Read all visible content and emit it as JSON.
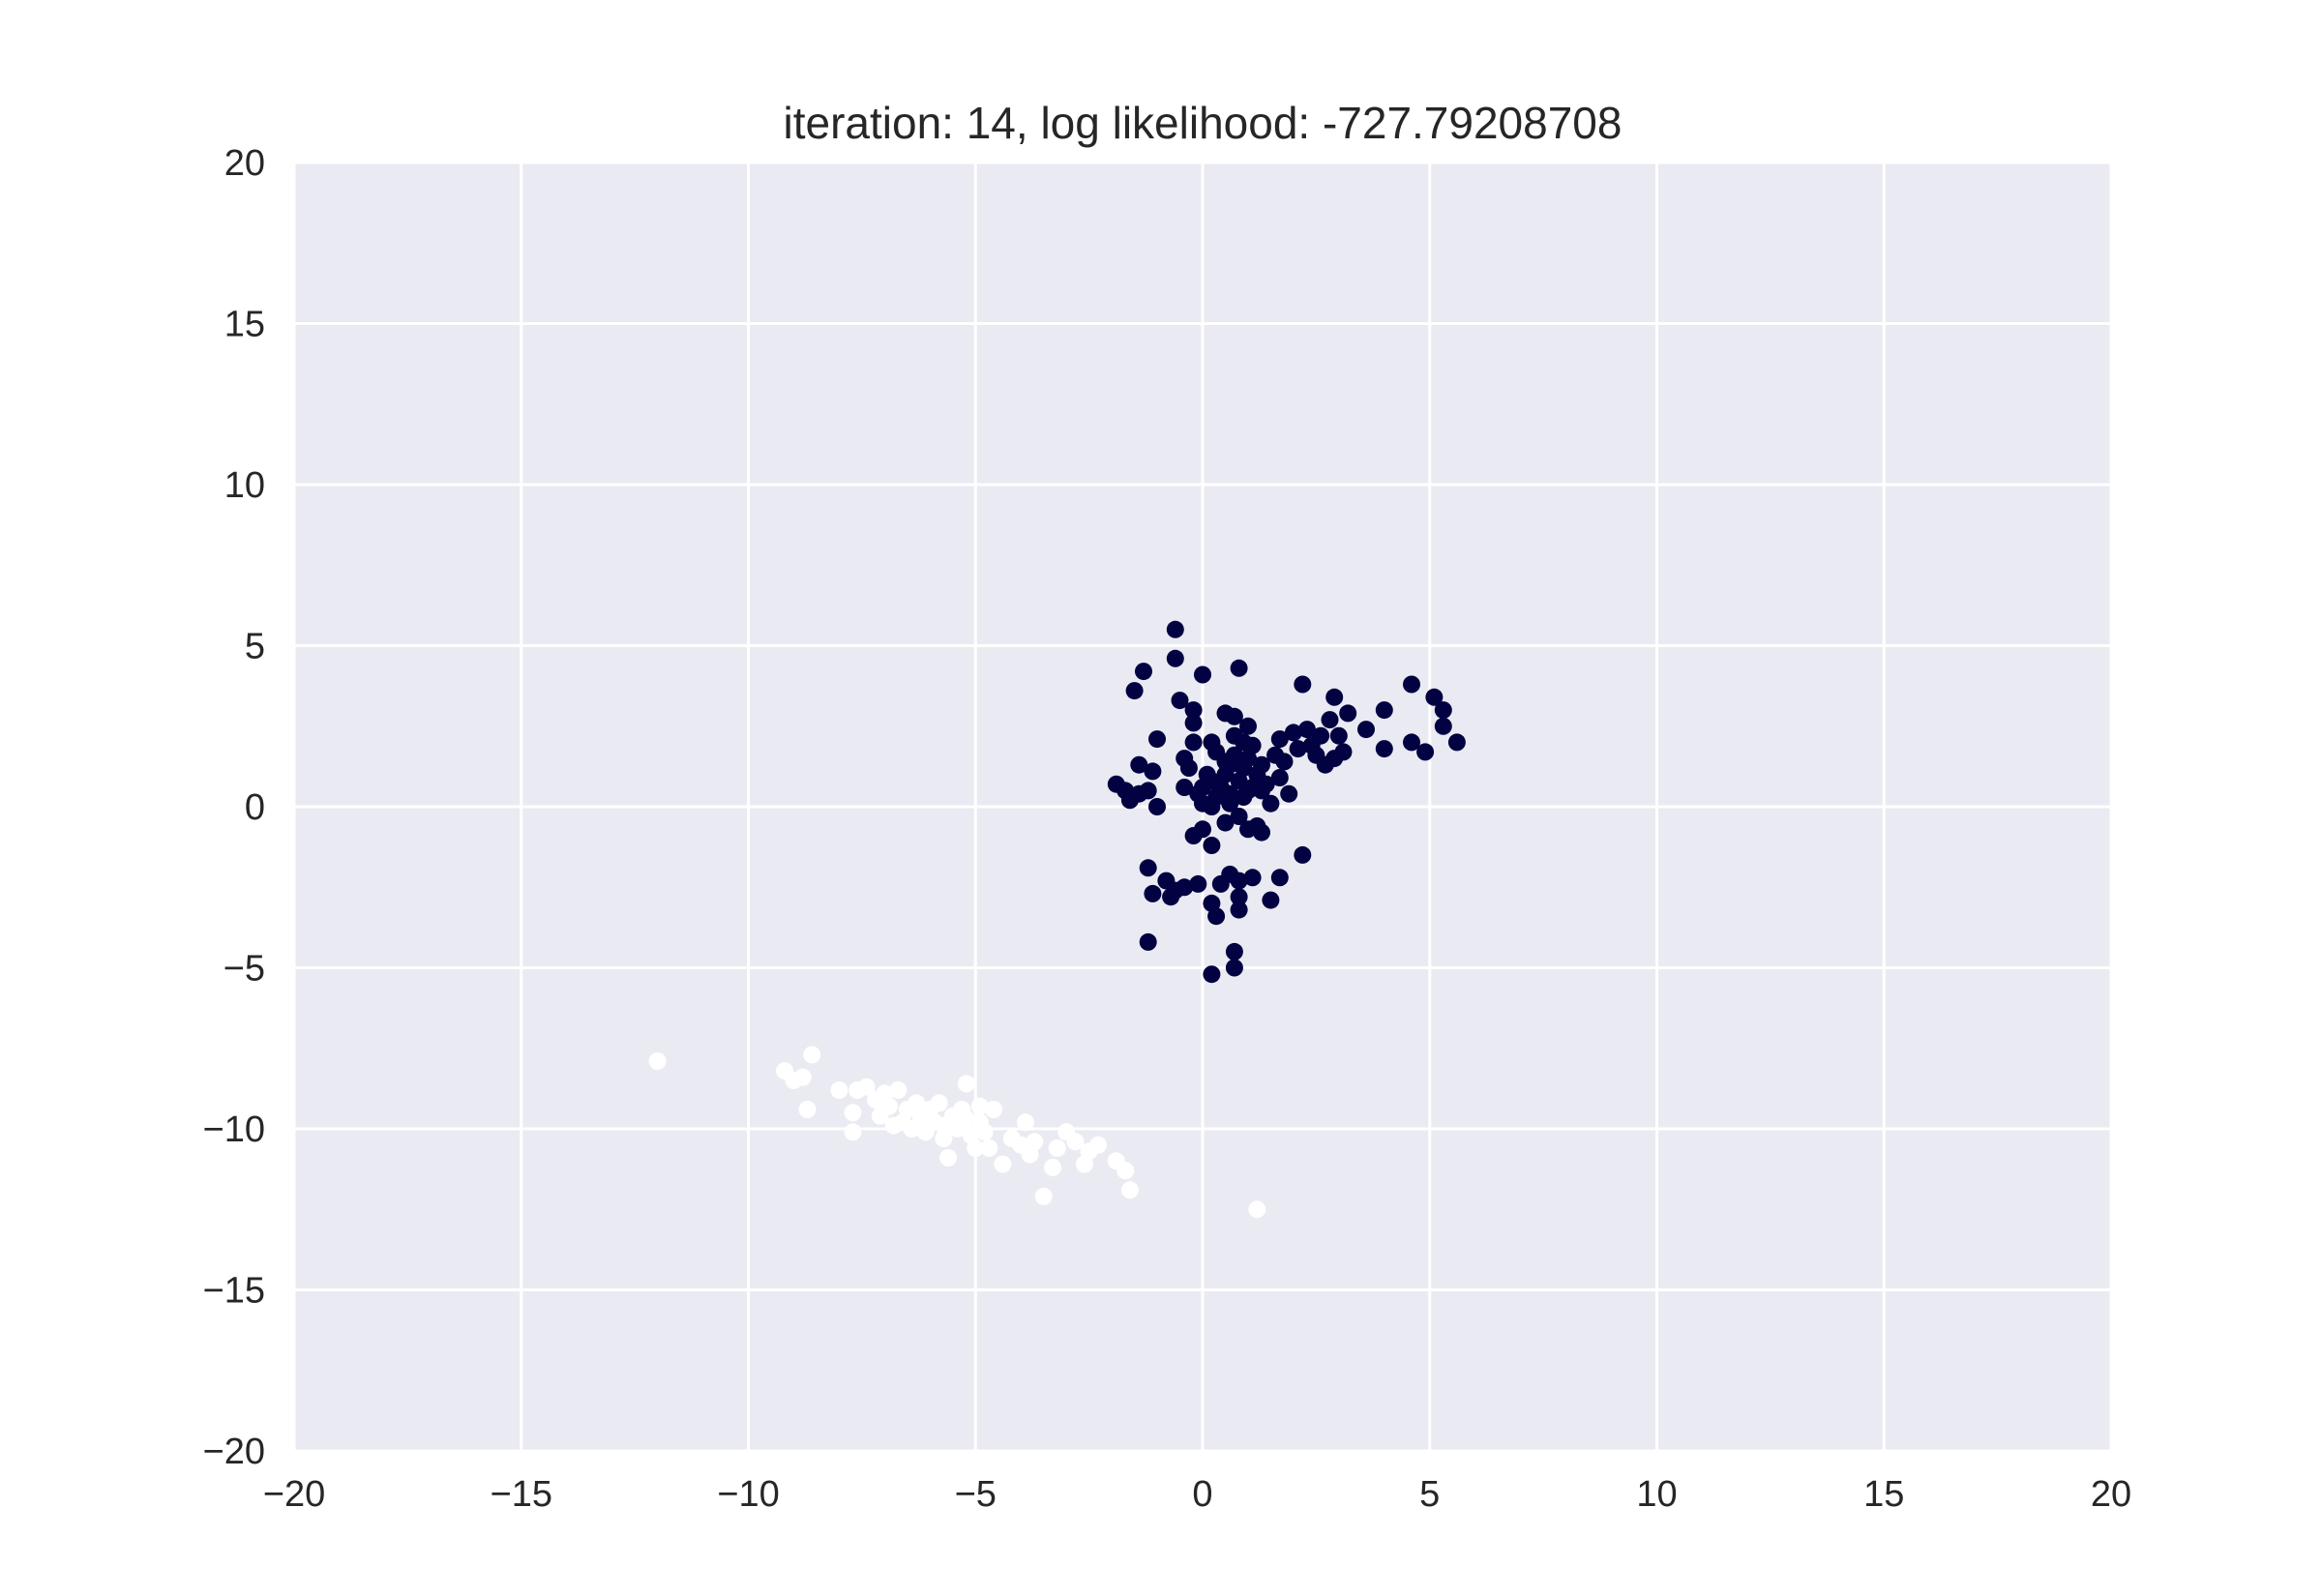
{
  "chart_data": {
    "type": "scatter",
    "title": "iteration: 14, log likelihood: -727.79208708",
    "xlabel": "",
    "ylabel": "",
    "xlim": [
      -20,
      20
    ],
    "ylim": [
      -20,
      20
    ],
    "xticks": [
      -20,
      -15,
      -10,
      -5,
      0,
      5,
      10,
      15,
      20
    ],
    "yticks": [
      -20,
      -15,
      -10,
      -5,
      0,
      5,
      10,
      15,
      20
    ],
    "xtick_labels": [
      "−20",
      "−15",
      "−10",
      "−5",
      "0",
      "5",
      "10",
      "15",
      "20"
    ],
    "ytick_labels": [
      "−20",
      "−15",
      "−10",
      "−5",
      "0",
      "5",
      "10",
      "15",
      "20"
    ],
    "grid": true,
    "background_color": "#eaeaf2",
    "grid_color": "#ffffff",
    "series": [
      {
        "color": "#020142",
        "points": [
          [
            -0.6,
            5.5
          ],
          [
            -1.3,
            4.2
          ],
          [
            -0.6,
            4.6
          ],
          [
            0.0,
            4.1
          ],
          [
            0.8,
            4.3
          ],
          [
            -1.5,
            3.6
          ],
          [
            -0.5,
            3.3
          ],
          [
            -0.2,
            3.0
          ],
          [
            -0.2,
            2.6
          ],
          [
            0.5,
            2.9
          ],
          [
            0.7,
            2.8
          ],
          [
            1.0,
            2.5
          ],
          [
            -0.2,
            2.0
          ],
          [
            -1.0,
            2.1
          ],
          [
            0.2,
            2.0
          ],
          [
            -0.4,
            1.5
          ],
          [
            -0.3,
            1.2
          ],
          [
            -1.1,
            1.1
          ],
          [
            -1.4,
            1.3
          ],
          [
            -1.4,
            0.4
          ],
          [
            -1.2,
            0.5
          ],
          [
            -1.9,
            0.7
          ],
          [
            -1.7,
            0.5
          ],
          [
            -1.6,
            0.2
          ],
          [
            -1.0,
            0.0
          ],
          [
            -0.4,
            0.6
          ],
          [
            -0.1,
            0.4
          ],
          [
            0.0,
            0.1
          ],
          [
            0.1,
            1.0
          ],
          [
            0.2,
            0.8
          ],
          [
            0.3,
            0.3
          ],
          [
            0.4,
            0.6
          ],
          [
            0.5,
            1.0
          ],
          [
            0.6,
            1.3
          ],
          [
            0.7,
            1.6
          ],
          [
            0.7,
            2.2
          ],
          [
            0.8,
            0.8
          ],
          [
            0.9,
            1.2
          ],
          [
            0.9,
            2.0
          ],
          [
            1.0,
            0.5
          ],
          [
            1.0,
            1.5
          ],
          [
            1.1,
            1.9
          ],
          [
            1.2,
            1.0
          ],
          [
            1.3,
            1.3
          ],
          [
            1.4,
            0.7
          ],
          [
            1.5,
            0.1
          ],
          [
            1.6,
            1.6
          ],
          [
            1.7,
            2.1
          ],
          [
            1.7,
            0.9
          ],
          [
            1.8,
            1.4
          ],
          [
            2.0,
            2.3
          ],
          [
            2.1,
            1.8
          ],
          [
            2.2,
            3.8
          ],
          [
            2.3,
            2.4
          ],
          [
            2.4,
            1.9
          ],
          [
            2.5,
            1.6
          ],
          [
            2.6,
            2.2
          ],
          [
            2.7,
            1.3
          ],
          [
            2.8,
            2.7
          ],
          [
            2.9,
            1.5
          ],
          [
            2.9,
            3.4
          ],
          [
            3.0,
            2.2
          ],
          [
            3.1,
            1.7
          ],
          [
            3.2,
            2.9
          ],
          [
            3.6,
            2.4
          ],
          [
            4.0,
            3.0
          ],
          [
            4.0,
            1.8
          ],
          [
            4.6,
            3.8
          ],
          [
            4.6,
            2.0
          ],
          [
            4.9,
            1.7
          ],
          [
            5.1,
            3.4
          ],
          [
            5.3,
            3.0
          ],
          [
            5.3,
            2.5
          ],
          [
            5.6,
            2.0
          ],
          [
            0.3,
            1.7
          ],
          [
            0.5,
            1.4
          ],
          [
            0.6,
            0.4
          ],
          [
            0.8,
            -0.3
          ],
          [
            0.5,
            -0.5
          ],
          [
            1.0,
            -0.7
          ],
          [
            1.2,
            -0.6
          ],
          [
            1.3,
            -0.8
          ],
          [
            0.0,
            -0.7
          ],
          [
            -0.2,
            -0.9
          ],
          [
            0.2,
            -1.2
          ],
          [
            -1.2,
            -1.9
          ],
          [
            -0.8,
            -2.3
          ],
          [
            -0.6,
            -2.6
          ],
          [
            -0.4,
            -2.5
          ],
          [
            -0.1,
            -2.4
          ],
          [
            0.4,
            -2.4
          ],
          [
            0.6,
            -2.1
          ],
          [
            0.8,
            -2.3
          ],
          [
            1.1,
            -2.2
          ],
          [
            1.7,
            -2.2
          ],
          [
            2.2,
            -1.5
          ],
          [
            -1.1,
            -2.7
          ],
          [
            -0.7,
            -2.8
          ],
          [
            0.2,
            -3.0
          ],
          [
            0.8,
            -2.8
          ],
          [
            1.5,
            -2.9
          ],
          [
            0.3,
            -3.4
          ],
          [
            0.8,
            -3.2
          ],
          [
            -1.2,
            -4.2
          ],
          [
            0.7,
            -4.5
          ],
          [
            0.7,
            -5.0
          ],
          [
            0.2,
            -5.2
          ],
          [
            0.0,
            0.6
          ],
          [
            0.2,
            0.0
          ],
          [
            0.4,
            0.4
          ],
          [
            0.6,
            0.1
          ],
          [
            0.9,
            0.3
          ],
          [
            1.1,
            0.6
          ],
          [
            1.3,
            0.5
          ],
          [
            1.9,
            0.4
          ]
        ]
      },
      {
        "color": "#ffffff",
        "points": [
          [
            -12.0,
            -7.9
          ],
          [
            -9.2,
            -8.2
          ],
          [
            -9.0,
            -8.5
          ],
          [
            -8.6,
            -7.7
          ],
          [
            -8.8,
            -8.4
          ],
          [
            -8.7,
            -9.4
          ],
          [
            -8.0,
            -8.8
          ],
          [
            -7.7,
            -9.5
          ],
          [
            -7.7,
            -10.1
          ],
          [
            -7.6,
            -8.8
          ],
          [
            -7.4,
            -8.7
          ],
          [
            -7.2,
            -9.1
          ],
          [
            -7.1,
            -9.6
          ],
          [
            -6.9,
            -9.3
          ],
          [
            -6.7,
            -8.8
          ],
          [
            -6.6,
            -9.8
          ],
          [
            -6.5,
            -9.4
          ],
          [
            -6.4,
            -10.0
          ],
          [
            -6.3,
            -9.2
          ],
          [
            -6.2,
            -9.6
          ],
          [
            -6.1,
            -10.1
          ],
          [
            -6.0,
            -9.4
          ],
          [
            -5.9,
            -9.8
          ],
          [
            -5.8,
            -9.2
          ],
          [
            -5.7,
            -10.3
          ],
          [
            -5.6,
            -10.9
          ],
          [
            -5.5,
            -9.6
          ],
          [
            -5.4,
            -10.0
          ],
          [
            -5.3,
            -9.4
          ],
          [
            -5.2,
            -8.6
          ],
          [
            -5.1,
            -10.2
          ],
          [
            -5.0,
            -10.6
          ],
          [
            -4.9,
            -9.8
          ],
          [
            -4.8,
            -10.1
          ],
          [
            -4.6,
            -9.4
          ],
          [
            -4.4,
            -11.1
          ],
          [
            -4.2,
            -10.3
          ],
          [
            -4.0,
            -10.5
          ],
          [
            -3.9,
            -9.8
          ],
          [
            -3.8,
            -10.8
          ],
          [
            -3.7,
            -10.4
          ],
          [
            -3.5,
            -12.1
          ],
          [
            -3.3,
            -11.2
          ],
          [
            -3.2,
            -10.6
          ],
          [
            -3.0,
            -10.1
          ],
          [
            -2.8,
            -10.4
          ],
          [
            -2.6,
            -11.1
          ],
          [
            -2.5,
            -10.7
          ],
          [
            -2.3,
            -10.5
          ],
          [
            -1.9,
            -11.0
          ],
          [
            -1.7,
            -11.3
          ],
          [
            -1.6,
            -11.9
          ],
          [
            1.2,
            -12.5
          ],
          [
            -6.2,
            -9.7
          ],
          [
            -5.7,
            -9.9
          ],
          [
            -5.2,
            -9.7
          ],
          [
            -4.9,
            -9.3
          ],
          [
            -4.7,
            -10.6
          ],
          [
            -6.8,
            -9.9
          ],
          [
            -7.0,
            -8.9
          ]
        ]
      }
    ]
  }
}
